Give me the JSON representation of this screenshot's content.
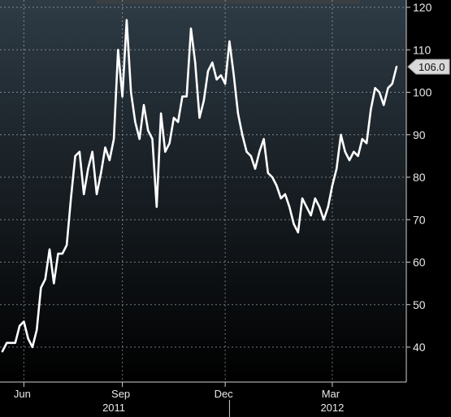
{
  "chart_data": {
    "type": "line",
    "title": "",
    "xlabel": "",
    "ylabel": "",
    "ylim": [
      32,
      122
    ],
    "y_ticks": [
      40,
      50,
      60,
      70,
      80,
      90,
      100,
      110,
      120
    ],
    "y_tick_labels": [
      "40",
      "50",
      "60",
      "70",
      "80",
      "90",
      "100",
      "110",
      "120"
    ],
    "x_ticks": [
      {
        "label": "Jun",
        "index": 5
      },
      {
        "label": "Sep",
        "index": 28
      },
      {
        "label": "Dec",
        "index": 52
      },
      {
        "label": "Mar",
        "index": 77
      }
    ],
    "year_labels": [
      {
        "label": "2011",
        "index": 26
      },
      {
        "label": "2012",
        "index": 77
      }
    ],
    "year_divider_index": 53,
    "last_value_label": "106.0",
    "grid": true,
    "series": [
      {
        "color": "#ffffff",
        "values": [
          39,
          41,
          41,
          41,
          45,
          46,
          42,
          40,
          44,
          54,
          56,
          63,
          55,
          62,
          62,
          64,
          75,
          85,
          86,
          76,
          82,
          86,
          76,
          81,
          87,
          84,
          89,
          110,
          99,
          117,
          100,
          93,
          89,
          97,
          91,
          89,
          73,
          95,
          86,
          88,
          94,
          93,
          99,
          99,
          115,
          107,
          94,
          98,
          105,
          107,
          103,
          104,
          102,
          112,
          104,
          95,
          90,
          86,
          85,
          82,
          86,
          89,
          81,
          80,
          78,
          75,
          76,
          73,
          69,
          67,
          75,
          73,
          71,
          75,
          73,
          70,
          73,
          78,
          82,
          90,
          86,
          84,
          86,
          85,
          89,
          88,
          96,
          101,
          100,
          97,
          101,
          102,
          106
        ]
      }
    ]
  },
  "colors": {
    "background_top": "#2e3b45",
    "background_bottom": "#000000",
    "line": "#ffffff",
    "callout_fill": "#d9d9d9"
  }
}
